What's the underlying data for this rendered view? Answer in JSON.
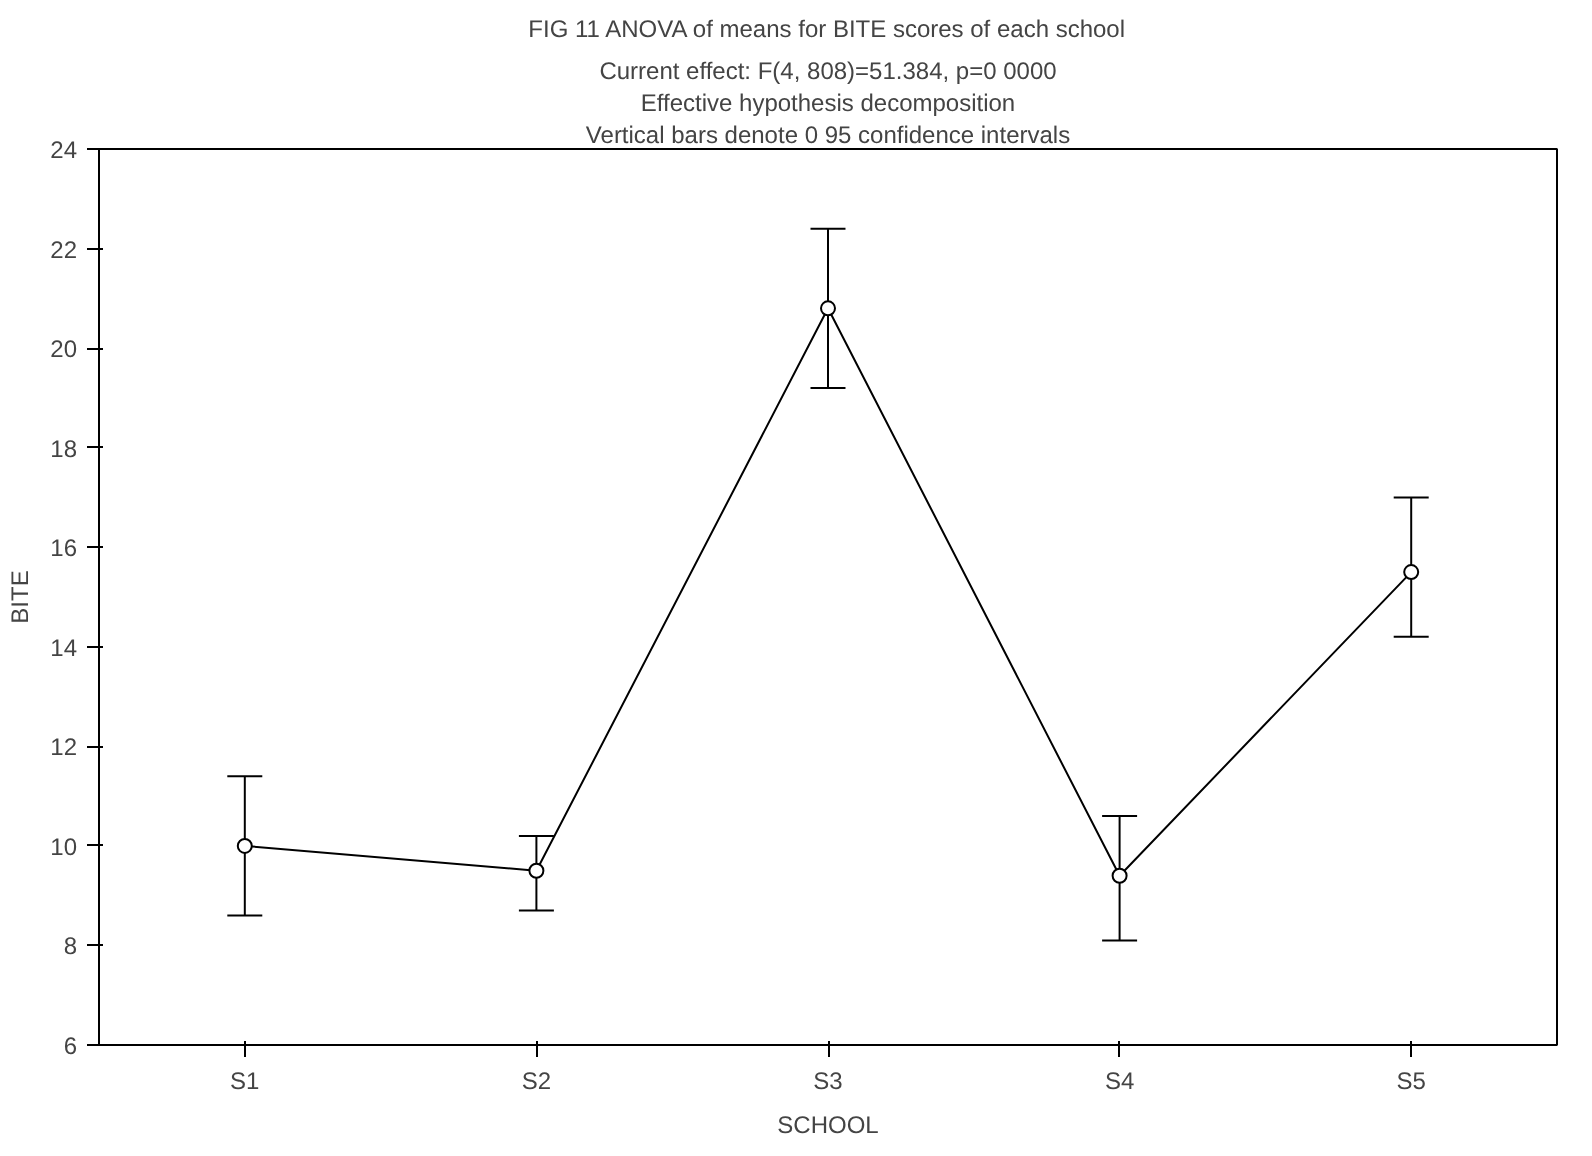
{
  "chart_data": {
    "type": "line",
    "title": "FIG 11 ANOVA of means for BITE scores of each school",
    "subtitle": "Current effect: F(4, 808)=51.384, p=0 0000",
    "annotations": [
      "Effective hypothesis decomposition",
      "Vertical bars denote 0 95 confidence intervals"
    ],
    "xlabel": "SCHOOL",
    "ylabel": "BITE",
    "categories": [
      "S1",
      "S2",
      "S3",
      "S4",
      "S5"
    ],
    "series": [
      {
        "color": "#000000",
        "values": [
          10.0,
          9.5,
          20.8,
          9.4,
          15.5
        ],
        "errors": [
          [
            8.6,
            11.4
          ],
          [
            8.7,
            10.2
          ],
          [
            19.2,
            22.4
          ],
          [
            8.1,
            10.6
          ],
          [
            14.2,
            17.0
          ]
        ]
      }
    ],
    "ylim": [
      6,
      24
    ],
    "yticks": [
      6,
      8,
      10,
      12,
      14,
      16,
      18,
      20,
      22,
      24
    ],
    "marker": "circle",
    "line_style": "solid"
  }
}
